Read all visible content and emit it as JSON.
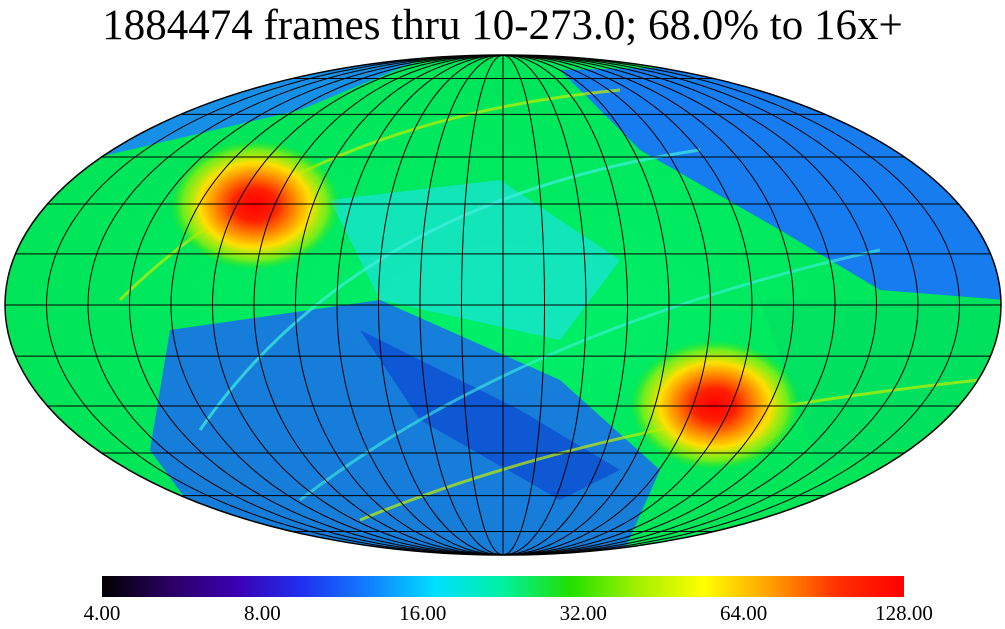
{
  "title": "1884474 frames thru 10-273.0; 68.0% to 16x+",
  "map": {
    "projection": "Mollweide",
    "graticule_lon_step_deg": 15,
    "graticule_lat_step_deg": 15
  },
  "colorbar": {
    "scale": "log",
    "min": 4.0,
    "max": 128.0,
    "colors": [
      "#000000",
      "#2a0060",
      "#3a00b0",
      "#2030f0",
      "#1080ff",
      "#00e0ff",
      "#00f0a0",
      "#20e000",
      "#a0f000",
      "#ffff00",
      "#ffa000",
      "#ff3000",
      "#ff0000"
    ],
    "ticks": [
      "4.00",
      "8.00",
      "16.00",
      "32.00",
      "64.00",
      "128.00"
    ],
    "tick_values": [
      4,
      8,
      16,
      32,
      64,
      128
    ]
  }
}
